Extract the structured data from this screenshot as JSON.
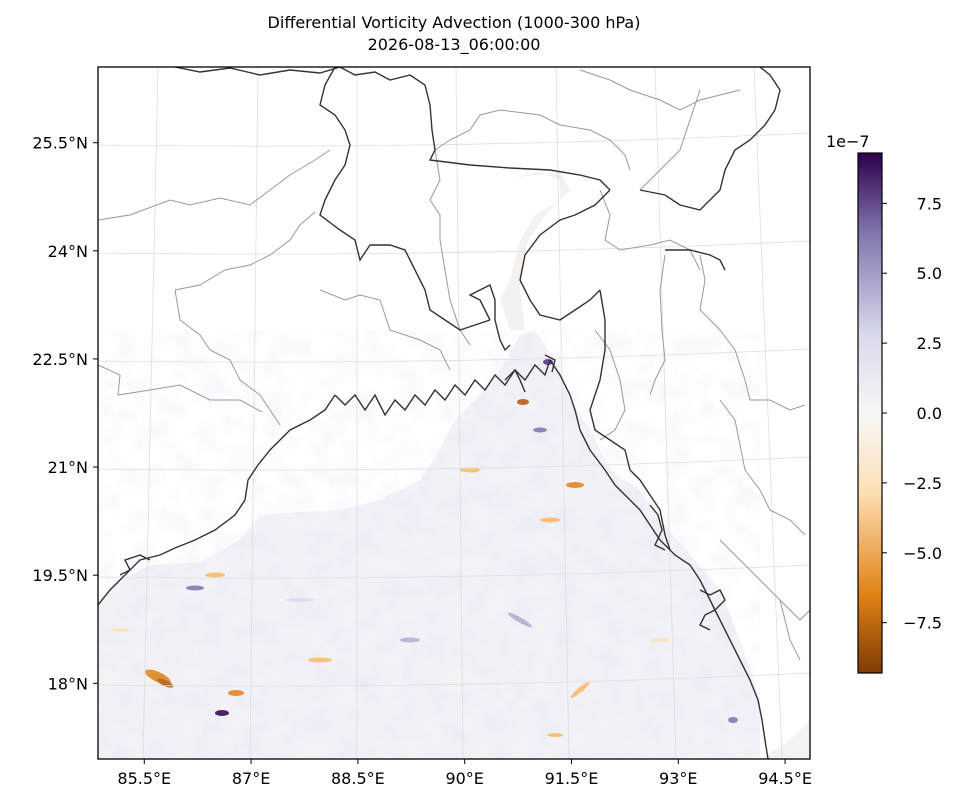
{
  "title": {
    "line1": "Differential Vorticity Advection (1000-300 hPa)",
    "line2": "2026-08-13_06:00:00"
  },
  "map": {
    "lon_ticks": [
      {
        "value": 85.5,
        "label": "85.5°E"
      },
      {
        "value": 87,
        "label": "87°E"
      },
      {
        "value": 88.5,
        "label": "88.5°E"
      },
      {
        "value": 90,
        "label": "90°E"
      },
      {
        "value": 91.5,
        "label": "91.5°E"
      },
      {
        "value": 93,
        "label": "93°E"
      },
      {
        "value": 94.5,
        "label": "94.5°E"
      }
    ],
    "lat_ticks": [
      {
        "value": 25.5,
        "label": "25.5°N"
      },
      {
        "value": 24,
        "label": "24°N"
      },
      {
        "value": 22.5,
        "label": "22.5°N"
      },
      {
        "value": 21,
        "label": "21°N"
      },
      {
        "value": 19.5,
        "label": "19.5°N"
      },
      {
        "value": 18,
        "label": "18°N"
      }
    ],
    "lon_range": [
      84.85,
      94.85
    ],
    "lat_range": [
      16.95,
      26.55
    ],
    "gridlines": true,
    "coastline_color": "#333333",
    "border_color": "#999999"
  },
  "colorbar": {
    "multiplier": "1e−7",
    "cmap": "PuOr",
    "range": [
      -9.3,
      9.3
    ],
    "ticks": [
      {
        "value": 7.5,
        "label": "7.5"
      },
      {
        "value": 5.0,
        "label": "5.0"
      },
      {
        "value": 2.5,
        "label": "2.5"
      },
      {
        "value": 0.0,
        "label": "0.0"
      },
      {
        "value": -2.5,
        "label": "−2.5"
      },
      {
        "value": -5.0,
        "label": "−5.0"
      },
      {
        "value": -7.5,
        "label": "−7.5"
      }
    ],
    "colors": {
      "max": "#2d004b",
      "high": "#8073ac",
      "mid_high": "#d8daeb",
      "zero": "#f7f7f7",
      "mid_low": "#fee0b6",
      "low": "#e08214",
      "min": "#7f3b08"
    }
  }
}
